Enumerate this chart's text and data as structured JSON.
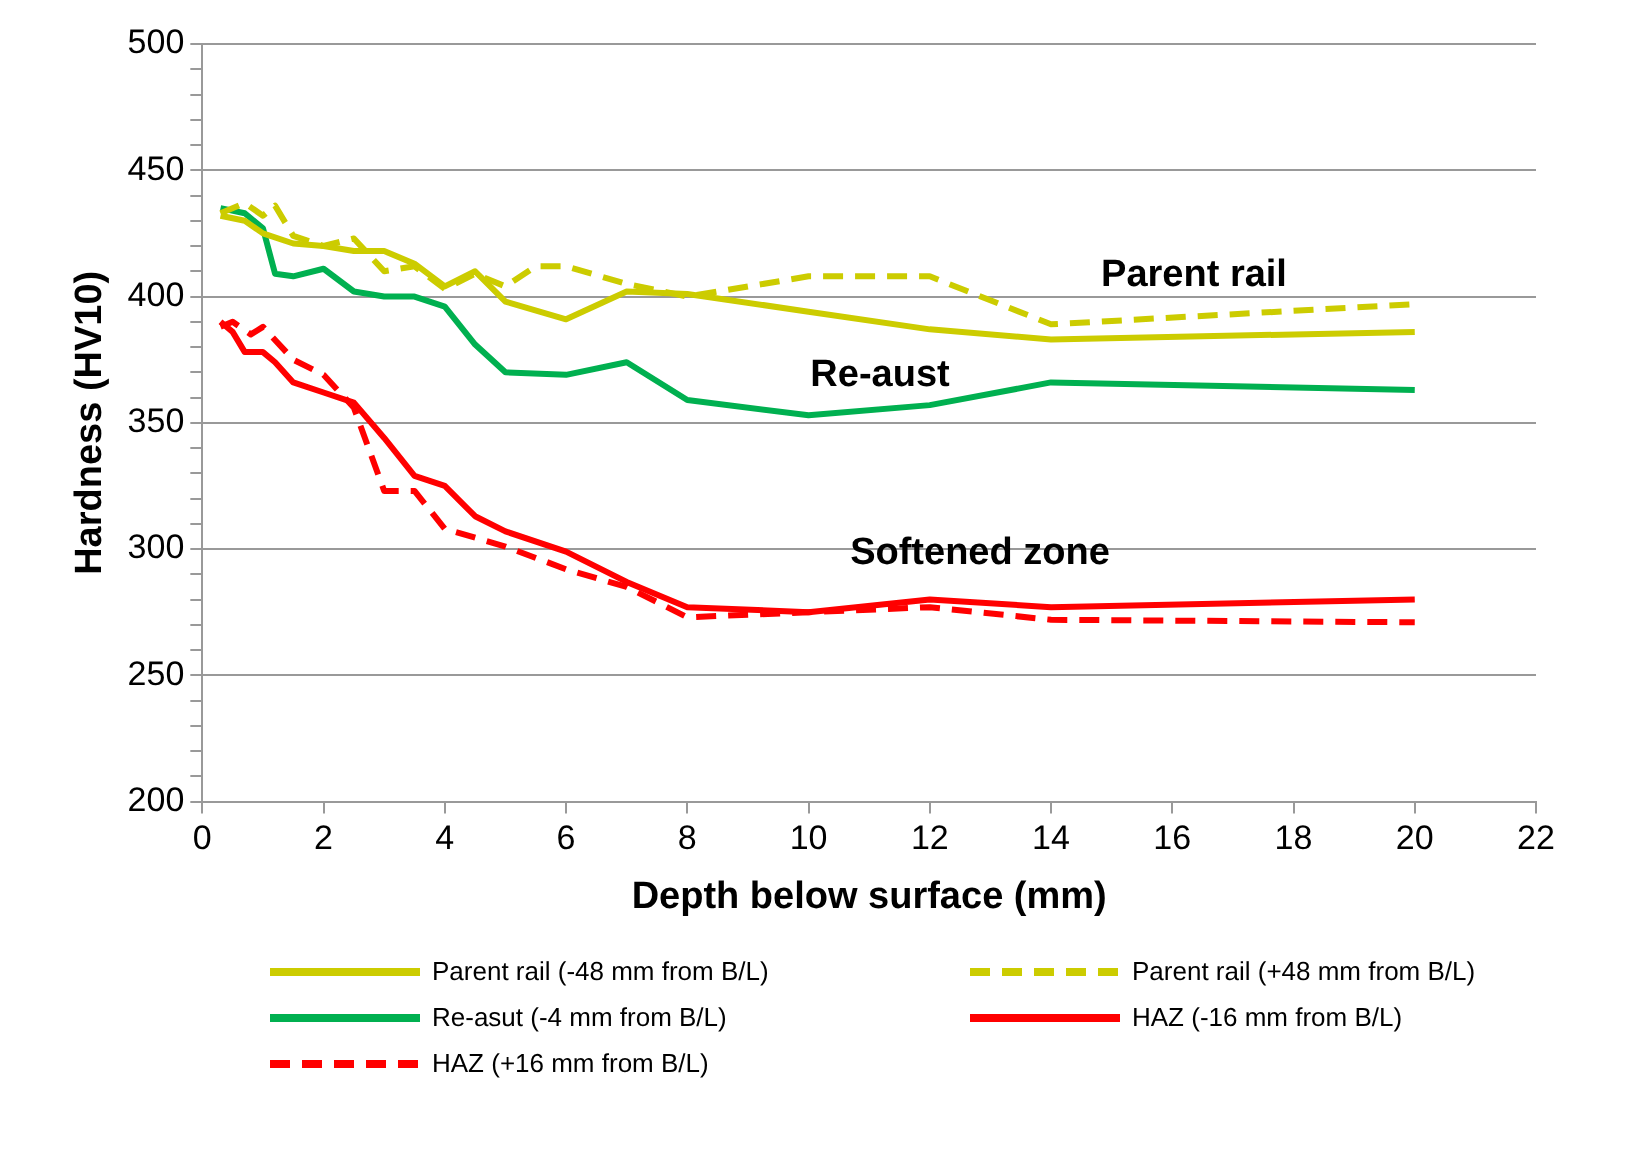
{
  "chart_data": {
    "type": "line",
    "xlabel": "Depth below surface (mm)",
    "ylabel": "Hardness (HV10)",
    "xlim": [
      0,
      22
    ],
    "xticks": [
      0,
      2,
      4,
      6,
      8,
      10,
      12,
      14,
      16,
      18,
      20,
      22
    ],
    "ylim": [
      200,
      500
    ],
    "yticks": [
      200,
      {
        "value": 210,
        "label": null
      },
      {
        "value": 220,
        "label": null
      },
      {
        "value": 230,
        "label": null
      },
      {
        "value": 240,
        "label": null
      },
      250,
      {
        "value": 260,
        "label": null
      },
      {
        "value": 270,
        "label": null
      },
      {
        "value": 280,
        "label": null
      },
      {
        "value": 290,
        "label": null
      },
      300,
      {
        "value": 310,
        "label": null
      },
      {
        "value": 320,
        "label": null
      },
      {
        "value": 330,
        "label": null
      },
      {
        "value": 340,
        "label": null
      },
      350,
      {
        "value": 360,
        "label": null
      },
      {
        "value": 370,
        "label": null
      },
      {
        "value": 380,
        "label": null
      },
      {
        "value": 390,
        "label": null
      },
      400,
      {
        "value": 410,
        "label": null
      },
      {
        "value": 420,
        "label": null
      },
      {
        "value": 430,
        "label": null
      },
      {
        "value": 440,
        "label": null
      },
      450,
      {
        "value": 460,
        "label": null
      },
      {
        "value": 470,
        "label": null
      },
      {
        "value": 480,
        "label": null
      },
      {
        "value": 490,
        "label": null
      },
      500
    ],
    "grid": "y",
    "legend": "bottom",
    "marker": "none",
    "series": [
      {
        "name": "Parent rail (-48 mm from B/L)",
        "color": "#cccc00",
        "line_style": "solid",
        "x": [
          0.3,
          0.7,
          1,
          1.5,
          2,
          2.5,
          3,
          3.5,
          4,
          4.5,
          5,
          6,
          7,
          8,
          10,
          12,
          14,
          20
        ],
        "values": [
          432,
          430,
          425,
          421,
          420,
          418,
          418,
          413,
          404,
          410,
          398,
          391,
          402,
          401,
          394,
          387,
          383,
          386
        ]
      },
      {
        "name": "Parent rail (+48 mm from B/L)",
        "color": "#cccc00",
        "line_style": "dashed",
        "x": [
          0.3,
          0.7,
          1,
          1.2,
          1.5,
          2,
          2.5,
          3,
          3.5,
          4,
          4.5,
          5,
          5.5,
          6,
          7,
          8,
          10,
          12,
          14,
          20
        ],
        "values": [
          433,
          437,
          432,
          436,
          424,
          420,
          423,
          410,
          412,
          403,
          409,
          404,
          412,
          412,
          405,
          400,
          408,
          408,
          389,
          397
        ]
      },
      {
        "name": "Re-asut (-4 mm from B/L)",
        "color": "#00b050",
        "line_style": "solid",
        "x": [
          0.3,
          0.7,
          1,
          1.2,
          1.5,
          2,
          2.5,
          3,
          3.5,
          4,
          4.5,
          5,
          6,
          7,
          8,
          10,
          12,
          14,
          20
        ],
        "values": [
          435,
          433,
          427,
          409,
          408,
          411,
          402,
          400,
          400,
          396,
          381,
          370,
          369,
          374,
          359,
          353,
          357,
          366,
          363
        ]
      },
      {
        "name": "HAZ (-16 mm from B/L)",
        "color": "#ff0000",
        "line_style": "solid",
        "x": [
          0.3,
          0.5,
          0.7,
          1,
          1.2,
          1.5,
          2,
          2.5,
          3,
          3.5,
          4,
          4.5,
          5,
          6,
          7,
          8,
          10,
          12,
          14,
          20
        ],
        "values": [
          390,
          386,
          378,
          378,
          374,
          366,
          362,
          358,
          344,
          329,
          325,
          313,
          307,
          299,
          287,
          277,
          275,
          280,
          277,
          280
        ]
      },
      {
        "name": "HAZ (+16 mm from B/L)",
        "color": "#ff0000",
        "line_style": "dashed",
        "x": [
          0.3,
          0.5,
          0.8,
          1,
          1.5,
          2,
          2.5,
          3,
          3.5,
          4,
          5,
          6,
          7,
          8,
          10,
          12,
          14,
          20
        ],
        "values": [
          388,
          390,
          385,
          388,
          375,
          369,
          356,
          323,
          323,
          308,
          301,
          292,
          285,
          273,
          275,
          277,
          272,
          271
        ]
      }
    ],
    "annotations": [
      "Parent rail",
      "Re-aust",
      "Softened zone"
    ]
  }
}
